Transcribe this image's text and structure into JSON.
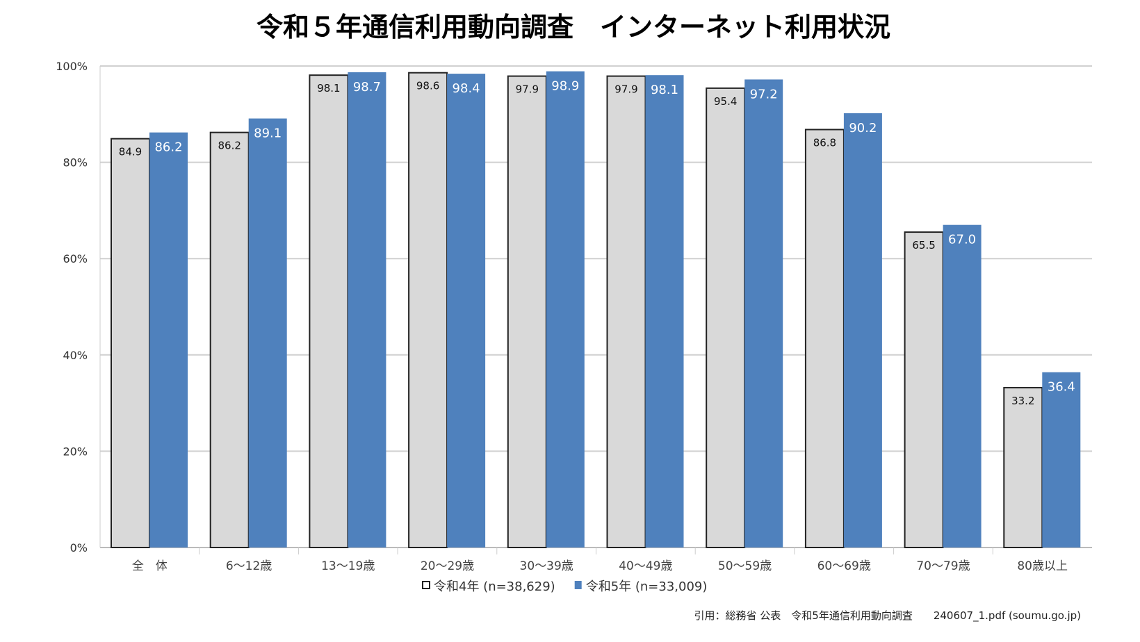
{
  "chart_data": {
    "type": "bar",
    "title": "令和５年通信利用動向調査　インターネット利用状況",
    "xlabel": "",
    "ylabel": "",
    "ylim": [
      0,
      100
    ],
    "yticks": [
      "0%",
      "20%",
      "40%",
      "60%",
      "80%",
      "100%"
    ],
    "grid": true,
    "legend_position": "bottom-center",
    "categories": [
      "全　体",
      "6〜12歳",
      "13〜19歳",
      "20〜29歳",
      "30〜39歳",
      "40〜49歳",
      "50〜59歳",
      "60〜69歳",
      "70〜79歳",
      "80歳以上"
    ],
    "series": [
      {
        "name": "令和4年 (n=38,629)",
        "color": "#d9d9d9",
        "values": [
          84.9,
          86.2,
          98.1,
          98.6,
          97.9,
          97.9,
          95.4,
          86.8,
          65.5,
          33.2
        ],
        "labels": [
          "84.9",
          "86.2",
          "98.1",
          "98.6",
          "97.9",
          "97.9",
          "95.4",
          "86.8",
          "65.5",
          "33.2"
        ]
      },
      {
        "name": "令和5年 (n=33,009)",
        "color": "#4f81bd",
        "values": [
          86.2,
          89.1,
          98.7,
          98.4,
          98.9,
          98.1,
          97.2,
          90.2,
          67.0,
          36.4
        ],
        "labels": [
          "86.2",
          "89.1",
          "98.7",
          "98.4",
          "98.9",
          "98.1",
          "97.2",
          "90.2",
          "67.0",
          "36.4"
        ]
      }
    ]
  },
  "footer": "引用：総務省 公表　令和5年通信利用動向調査　　240607_1.pdf (soumu.go.jp)"
}
